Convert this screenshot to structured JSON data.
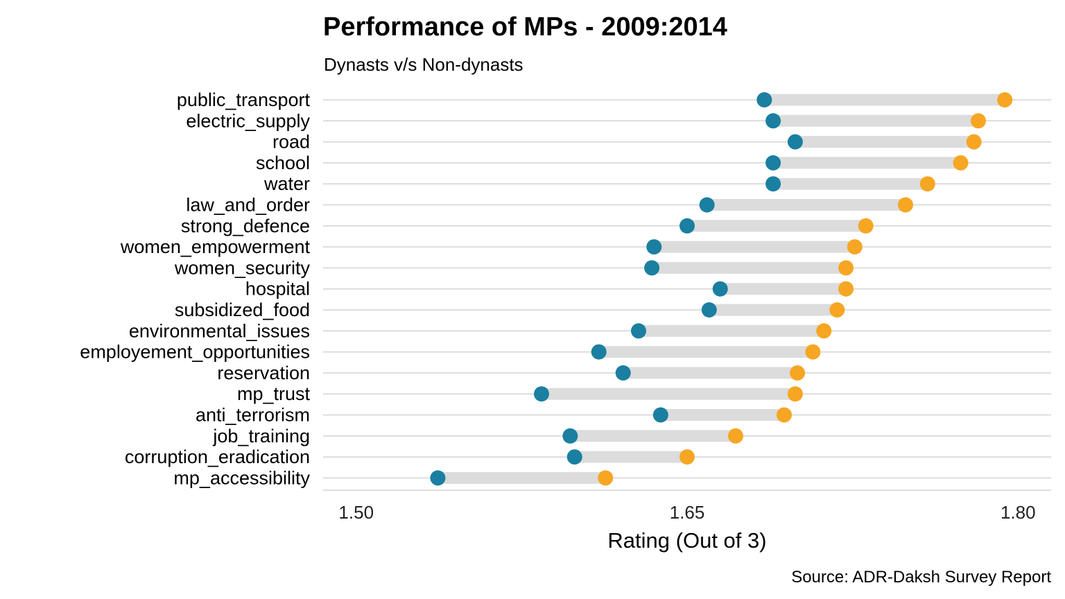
{
  "chart_data": {
    "type": "dumbbell",
    "title": "Performance of MPs - 2009:2014",
    "subtitle": "Dynasts  v/s Non-dynasts",
    "xlabel": "Rating (Out of 3)",
    "ylabel": "",
    "caption": "Source: ADR-Daksh Survey Report",
    "xlim": [
      1.485,
      1.815
    ],
    "xticks": [
      "1.50",
      "1.65",
      "1.80"
    ],
    "grid": "horizontal",
    "colors": {
      "left_point": "#1a7fa0",
      "right_point": "#f6a623",
      "segment": "#dcdcdc",
      "gridline": "#d3d3d3"
    },
    "categories": [
      "public_transport",
      "electric_supply",
      "road",
      "school",
      "water",
      "law_and_order",
      "strong_defence",
      "women_empowerment",
      "women_security",
      "hospital",
      "subsidized_food",
      "environmental_issues",
      "employement_opportunities",
      "reservation",
      "mp_trust",
      "anti_terrorism",
      "job_training",
      "corruption_eradication",
      "mp_accessibility"
    ],
    "series": [
      {
        "values": [
          1.685,
          1.689,
          1.699,
          1.689,
          1.689,
          1.659,
          1.65,
          1.635,
          1.634,
          1.665,
          1.66,
          1.628,
          1.61,
          1.621,
          1.584,
          1.638,
          1.597,
          1.599,
          1.537
        ]
      },
      {
        "values": [
          1.794,
          1.782,
          1.78,
          1.774,
          1.759,
          1.749,
          1.731,
          1.726,
          1.722,
          1.722,
          1.718,
          1.712,
          1.707,
          1.7,
          1.699,
          1.694,
          1.672,
          1.65,
          1.613
        ]
      }
    ]
  }
}
